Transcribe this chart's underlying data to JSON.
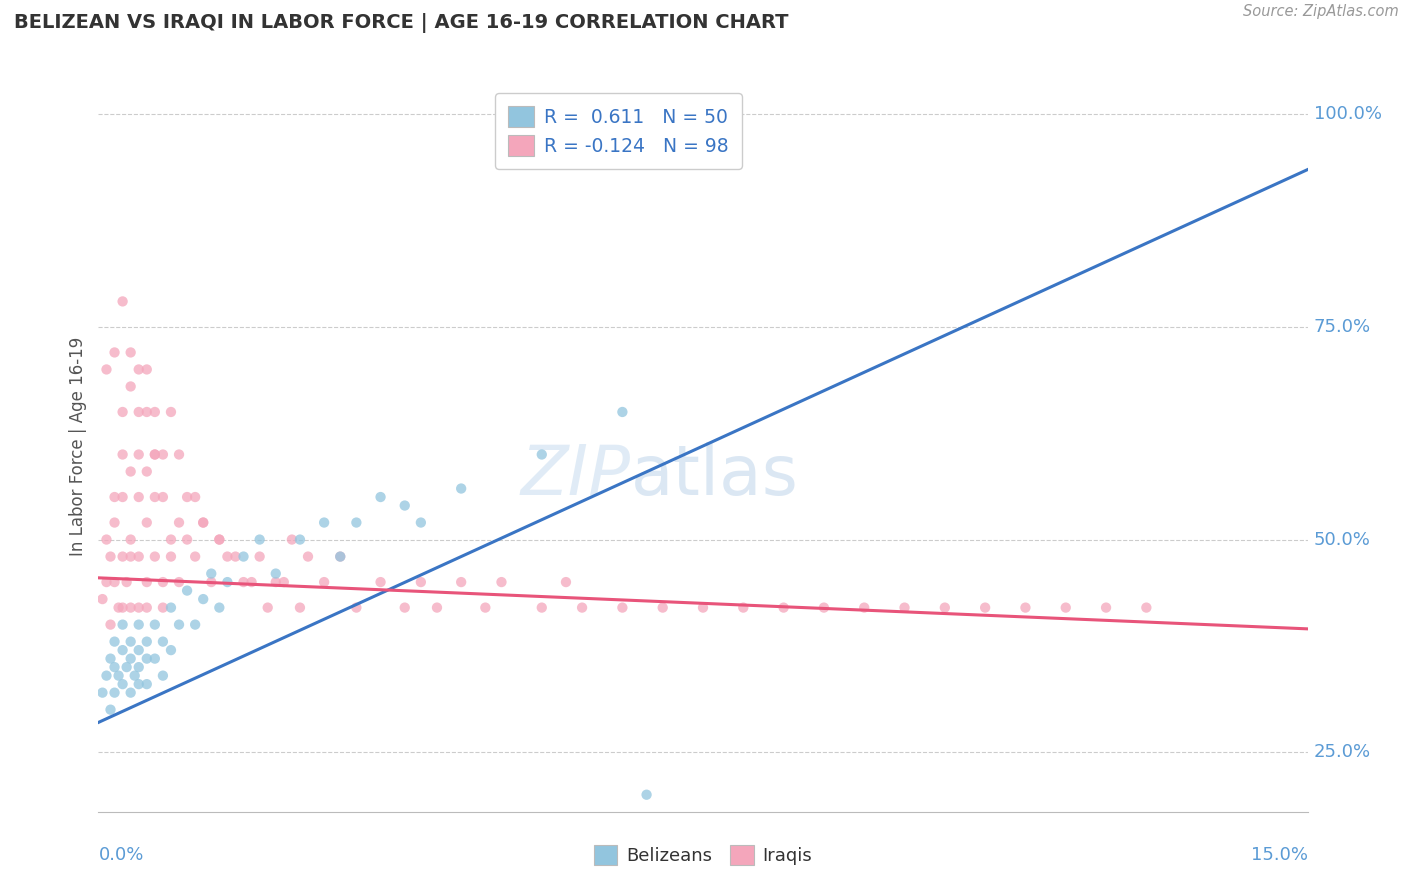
{
  "title": "BELIZEAN VS IRAQI IN LABOR FORCE | AGE 16-19 CORRELATION CHART",
  "source": "Source: ZipAtlas.com",
  "ylabel": "In Labor Force | Age 16-19",
  "blue_color": "#92c5de",
  "pink_color": "#f4a6bb",
  "blue_line_color": "#3a75c4",
  "pink_line_color": "#e8547a",
  "watermark_zip": "ZIP",
  "watermark_atlas": "atlas",
  "xlim": [
    0.0,
    0.15
  ],
  "ylim": [
    0.18,
    1.04
  ],
  "y_ticks": [
    0.25,
    0.5,
    0.75,
    1.0
  ],
  "y_tick_labels": [
    "25.0%",
    "50.0%",
    "75.0%",
    "100.0%"
  ],
  "blue_line_x": [
    0.0,
    0.15
  ],
  "blue_line_y": [
    0.285,
    0.935
  ],
  "pink_line_x": [
    0.0,
    0.15
  ],
  "pink_line_y": [
    0.455,
    0.395
  ],
  "bel_x": [
    0.0005,
    0.001,
    0.0015,
    0.0015,
    0.002,
    0.002,
    0.002,
    0.0025,
    0.003,
    0.003,
    0.003,
    0.0035,
    0.004,
    0.004,
    0.004,
    0.0045,
    0.005,
    0.005,
    0.005,
    0.005,
    0.006,
    0.006,
    0.006,
    0.007,
    0.007,
    0.008,
    0.008,
    0.009,
    0.009,
    0.01,
    0.011,
    0.012,
    0.013,
    0.014,
    0.015,
    0.016,
    0.018,
    0.02,
    0.022,
    0.025,
    0.028,
    0.03,
    0.032,
    0.035,
    0.038,
    0.04,
    0.045,
    0.055,
    0.065,
    0.068
  ],
  "bel_y": [
    0.32,
    0.34,
    0.36,
    0.3,
    0.38,
    0.32,
    0.35,
    0.34,
    0.37,
    0.33,
    0.4,
    0.35,
    0.36,
    0.38,
    0.32,
    0.34,
    0.4,
    0.37,
    0.33,
    0.35,
    0.38,
    0.36,
    0.33,
    0.4,
    0.36,
    0.38,
    0.34,
    0.42,
    0.37,
    0.4,
    0.44,
    0.4,
    0.43,
    0.46,
    0.42,
    0.45,
    0.48,
    0.5,
    0.46,
    0.5,
    0.52,
    0.48,
    0.52,
    0.55,
    0.54,
    0.52,
    0.56,
    0.6,
    0.65,
    0.2
  ],
  "irq_x": [
    0.0005,
    0.001,
    0.001,
    0.0015,
    0.0015,
    0.002,
    0.002,
    0.002,
    0.0025,
    0.003,
    0.003,
    0.003,
    0.003,
    0.0035,
    0.004,
    0.004,
    0.004,
    0.004,
    0.005,
    0.005,
    0.005,
    0.005,
    0.006,
    0.006,
    0.006,
    0.006,
    0.007,
    0.007,
    0.007,
    0.008,
    0.008,
    0.008,
    0.009,
    0.009,
    0.01,
    0.01,
    0.011,
    0.012,
    0.013,
    0.014,
    0.015,
    0.016,
    0.018,
    0.02,
    0.022,
    0.024,
    0.026,
    0.028,
    0.03,
    0.032,
    0.035,
    0.038,
    0.04,
    0.042,
    0.045,
    0.048,
    0.05,
    0.055,
    0.058,
    0.06,
    0.065,
    0.07,
    0.075,
    0.08,
    0.085,
    0.09,
    0.095,
    0.1,
    0.105,
    0.11,
    0.115,
    0.12,
    0.125,
    0.13,
    0.001,
    0.002,
    0.003,
    0.003,
    0.004,
    0.004,
    0.005,
    0.005,
    0.006,
    0.006,
    0.007,
    0.007,
    0.008,
    0.009,
    0.01,
    0.011,
    0.012,
    0.013,
    0.015,
    0.017,
    0.019,
    0.021,
    0.023,
    0.025
  ],
  "irq_y": [
    0.43,
    0.45,
    0.5,
    0.4,
    0.48,
    0.45,
    0.52,
    0.55,
    0.42,
    0.48,
    0.55,
    0.42,
    0.6,
    0.45,
    0.5,
    0.58,
    0.42,
    0.48,
    0.55,
    0.48,
    0.42,
    0.65,
    0.58,
    0.45,
    0.52,
    0.42,
    0.55,
    0.48,
    0.6,
    0.45,
    0.55,
    0.42,
    0.5,
    0.48,
    0.52,
    0.45,
    0.5,
    0.48,
    0.52,
    0.45,
    0.5,
    0.48,
    0.45,
    0.48,
    0.45,
    0.5,
    0.48,
    0.45,
    0.48,
    0.42,
    0.45,
    0.42,
    0.45,
    0.42,
    0.45,
    0.42,
    0.45,
    0.42,
    0.45,
    0.42,
    0.42,
    0.42,
    0.42,
    0.42,
    0.42,
    0.42,
    0.42,
    0.42,
    0.42,
    0.42,
    0.42,
    0.42,
    0.42,
    0.42,
    0.7,
    0.72,
    0.78,
    0.65,
    0.72,
    0.68,
    0.7,
    0.6,
    0.65,
    0.7,
    0.6,
    0.65,
    0.6,
    0.65,
    0.6,
    0.55,
    0.55,
    0.52,
    0.5,
    0.48,
    0.45,
    0.42,
    0.45,
    0.42
  ]
}
